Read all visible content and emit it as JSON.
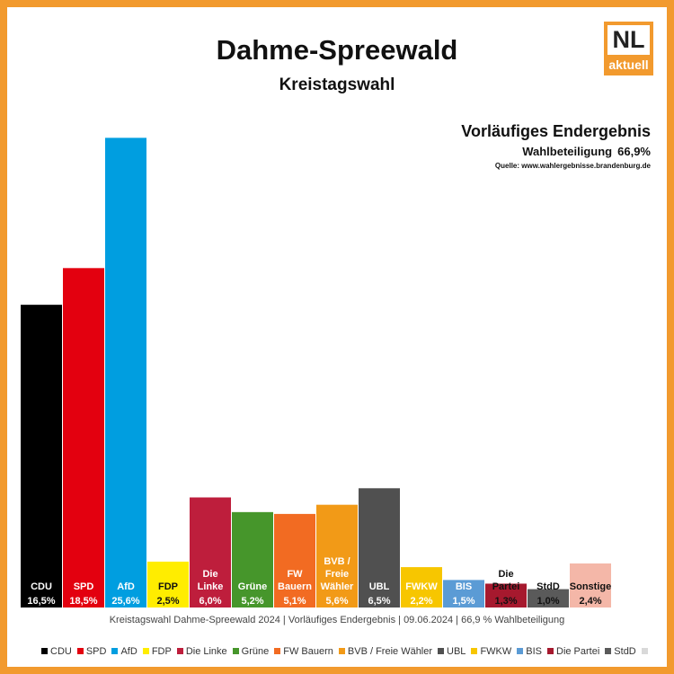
{
  "header": {
    "title": "Dahme-Spreewald",
    "subtitle": "Kreistagswahl"
  },
  "logo": {
    "main": "NL",
    "sub": "aktuell"
  },
  "status": {
    "title": "Vorläufiges Endergebnis",
    "turnout_label": "Wahlbeteiligung",
    "turnout_value": "66,9%",
    "source": "Quelle: www.wahlergebnisse.brandenburg.de"
  },
  "footnote": "Kreistagswahl Dahme-Spreewald 2024 | Vorläufiges Endergebnis | 09.06.2024 | 66,9 % Wahlbeteiligung",
  "colors": {
    "border": "#f29a2e"
  },
  "chart_data": {
    "type": "bar",
    "ylim": [
      0,
      26.5
    ],
    "grid": false,
    "legend_position": "bottom",
    "categories": [
      "CDU",
      "SPD",
      "AfD",
      "FDP",
      "Die Linke",
      "Grüne",
      "FW Bauern",
      "BVB / Freie Wähler",
      "UBL",
      "FWKW",
      "BIS",
      "Die Partei",
      "StdD",
      "Sonstige"
    ],
    "values": [
      16.5,
      18.5,
      25.6,
      2.5,
      6.0,
      5.2,
      5.1,
      5.6,
      6.5,
      2.2,
      1.5,
      1.3,
      1.0,
      2.4
    ],
    "bar_labels": [
      [
        "CDU"
      ],
      [
        "SPD"
      ],
      [
        "AfD"
      ],
      [
        "FDP"
      ],
      [
        "Die",
        "Linke"
      ],
      [
        "Grüne"
      ],
      [
        "FW",
        "Bauern"
      ],
      [
        "BVB /",
        "Freie",
        "Wähler"
      ],
      [
        "UBL"
      ],
      [
        "FWKW"
      ],
      [
        "BIS"
      ],
      [
        "Die",
        "Partei"
      ],
      [
        "StdD"
      ],
      [
        "Sonstige"
      ]
    ],
    "value_labels": [
      "16,5%",
      "18,5%",
      "25,6%",
      "2,5%",
      "6,0%",
      "5,2%",
      "5,1%",
      "5,6%",
      "6,5%",
      "2,2%",
      "1,5%",
      "1,3%",
      "1,0%",
      "2,4%"
    ],
    "colors": [
      "#000000",
      "#e3000f",
      "#009ee0",
      "#ffed00",
      "#be1e3c",
      "#46962b",
      "#f26b22",
      "#f29a17",
      "#505050",
      "#f7c600",
      "#5b9bd5",
      "#a6192e",
      "#5a5a5a",
      "#f4b7a8"
    ],
    "text_colors": [
      "#ffffff",
      "#ffffff",
      "#ffffff",
      "#111111",
      "#ffffff",
      "#ffffff",
      "#ffffff",
      "#ffffff",
      "#ffffff",
      "#ffffff",
      "#ffffff",
      "#111111",
      "#111111",
      "#111111"
    ],
    "legend": [
      {
        "name": "CDU",
        "color": "#000000"
      },
      {
        "name": "SPD",
        "color": "#e3000f"
      },
      {
        "name": "AfD",
        "color": "#009ee0"
      },
      {
        "name": "FDP",
        "color": "#ffed00"
      },
      {
        "name": "Die Linke",
        "color": "#be1e3c"
      },
      {
        "name": "Grüne",
        "color": "#46962b"
      },
      {
        "name": "FW Bauern",
        "color": "#f26b22"
      },
      {
        "name": "BVB / Freie Wähler",
        "color": "#f29a17"
      },
      {
        "name": "UBL",
        "color": "#505050"
      },
      {
        "name": "FWKW",
        "color": "#f7c600"
      },
      {
        "name": "BIS",
        "color": "#5b9bd5"
      },
      {
        "name": "Die Partei",
        "color": "#a6192e"
      },
      {
        "name": "StdD",
        "color": "#5a5a5a"
      },
      {
        "name": "",
        "color": "#d9d9d9"
      }
    ]
  }
}
